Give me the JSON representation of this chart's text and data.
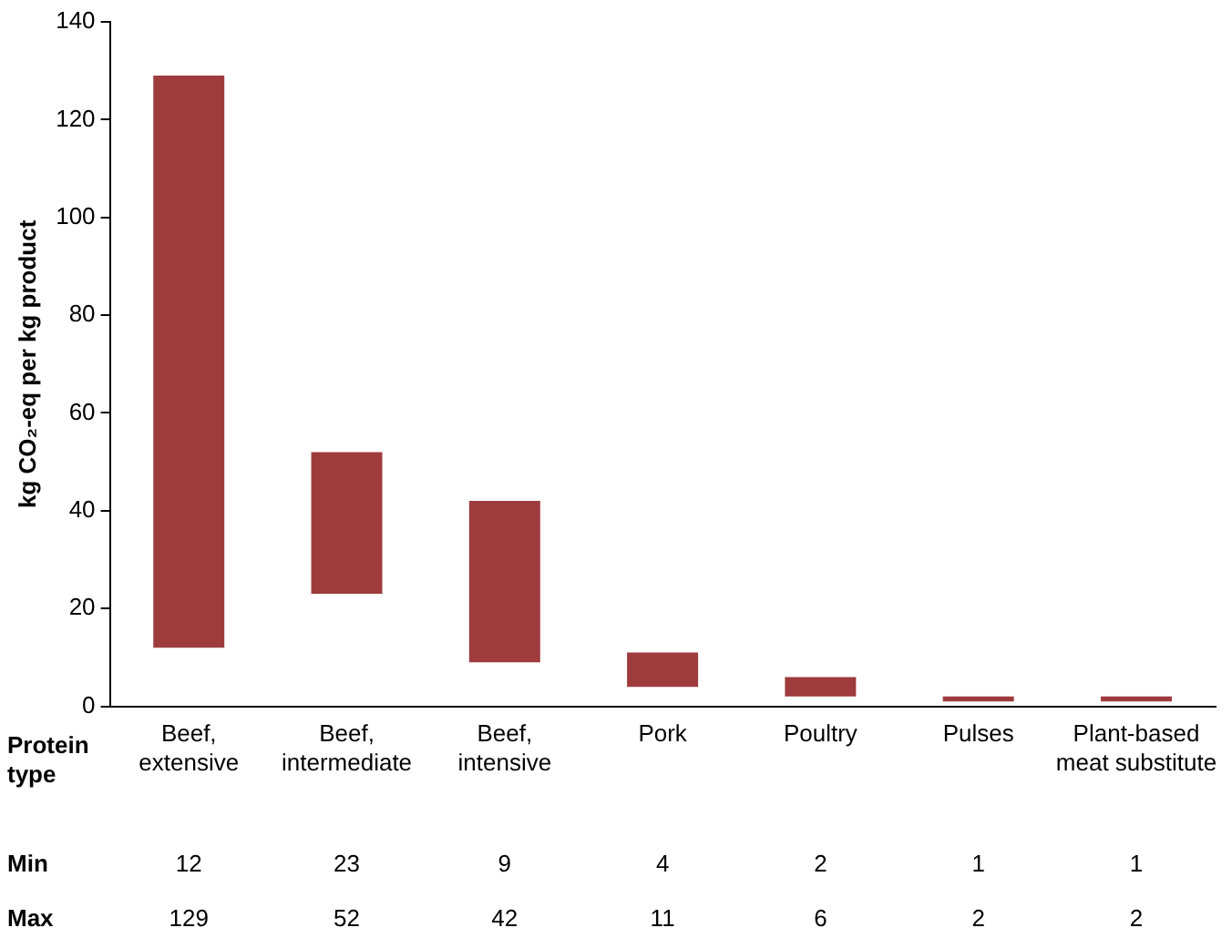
{
  "chart_data": {
    "type": "bar",
    "ylabel": "kg CO₂-eq per kg product",
    "categories": [
      "Beef, extensive",
      "Beef, intermediate",
      "Beef, intensive",
      "Pork",
      "Poultry",
      "Pulses",
      "Plant-based meat substitute"
    ],
    "base": [
      12,
      23,
      9,
      4,
      2,
      1,
      1
    ],
    "values": [
      117,
      29,
      33,
      7,
      4,
      1,
      1
    ],
    "value_labels": [
      "129",
      "52",
      "42",
      "11",
      "6",
      "2",
      "2"
    ],
    "color": "#9e3b3d",
    "ylim": [
      0,
      140
    ],
    "yticks": [
      0,
      20,
      40,
      60,
      80,
      100,
      120,
      140
    ],
    "grid": false,
    "legend": false,
    "annotations": [
      "Protein type",
      "Min",
      "Max",
      "12",
      "23",
      "9",
      "4",
      "2",
      "1",
      "1"
    ]
  }
}
